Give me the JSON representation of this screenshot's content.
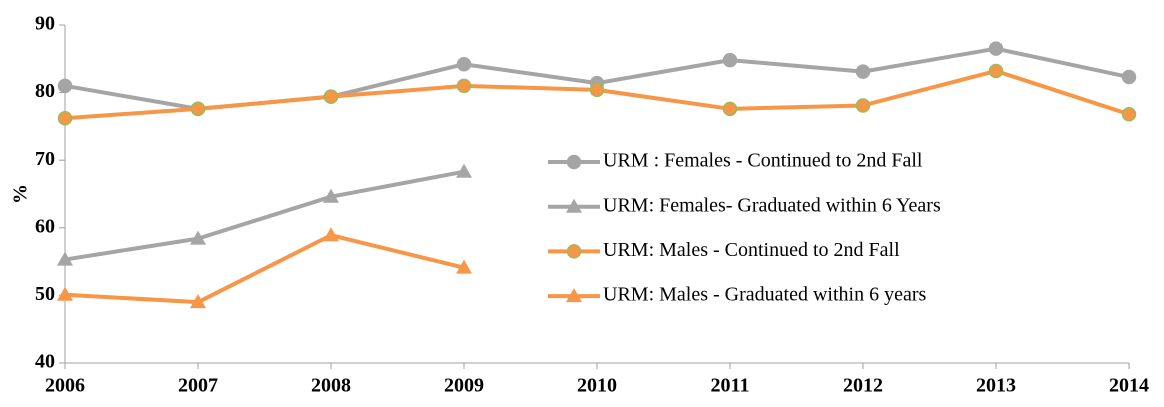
{
  "chart_data": {
    "type": "line",
    "y_label": "%",
    "categories": [
      "2006",
      "2007",
      "2008",
      "2009",
      "2010",
      "2011",
      "2012",
      "2013",
      "2014"
    ],
    "ylim": [
      40,
      90
    ],
    "yticks": [
      40,
      50,
      60,
      70,
      80,
      90
    ],
    "legend": "right",
    "series": [
      {
        "name": "URM : Females - Continued to 2nd Fall",
        "color": "#a5a5a5",
        "marker": "circle",
        "values": [
          81.0,
          77.6,
          79.4,
          84.2,
          81.4,
          84.8,
          83.1,
          86.5,
          82.3
        ]
      },
      {
        "name": "URM: Females- Graduated within 6 Years",
        "color": "#a5a5a5",
        "marker": "triangle",
        "values": [
          55.3,
          58.4,
          64.6,
          68.3,
          null,
          null,
          null,
          null,
          null
        ]
      },
      {
        "name": "URM: Males -  Continued to 2nd Fall",
        "color": "#f79646",
        "marker": "circle",
        "values": [
          76.2,
          77.6,
          79.4,
          81.0,
          80.4,
          77.6,
          78.1,
          83.2,
          76.8
        ]
      },
      {
        "name": "URM: Males - Graduated within 6 years",
        "color": "#f79646",
        "marker": "triangle",
        "values": [
          50.1,
          49.0,
          58.9,
          54.1,
          null,
          null,
          null,
          null,
          null
        ]
      }
    ]
  }
}
